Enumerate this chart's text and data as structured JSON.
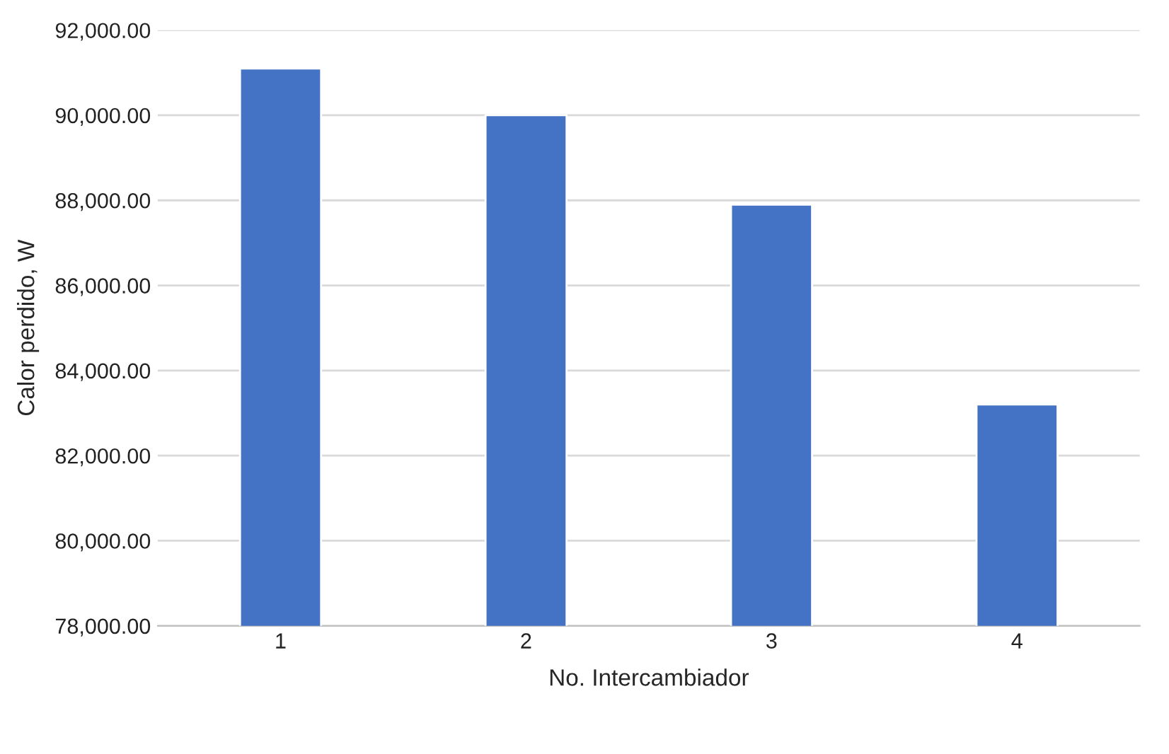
{
  "chart_data": {
    "type": "bar",
    "xlabel": "No. Intercambiador",
    "ylabel": "Calor perdido, W",
    "categories": [
      "1",
      "2",
      "3",
      "4"
    ],
    "values": [
      91100,
      90000,
      87900,
      83200
    ],
    "color": "#4472c4",
    "ylim": [
      78000,
      92000
    ],
    "yticks": [
      {
        "value": 78000,
        "label": "78,000.00"
      },
      {
        "value": 80000,
        "label": "80,000.00"
      },
      {
        "value": 82000,
        "label": "82,000.00"
      },
      {
        "value": 84000,
        "label": "84,000.00"
      },
      {
        "value": 86000,
        "label": "86,000.00"
      },
      {
        "value": 88000,
        "label": "88,000.00"
      },
      {
        "value": 90000,
        "label": "90,000.00"
      },
      {
        "value": 92000,
        "label": "92,000.00"
      }
    ],
    "grid": "y"
  }
}
